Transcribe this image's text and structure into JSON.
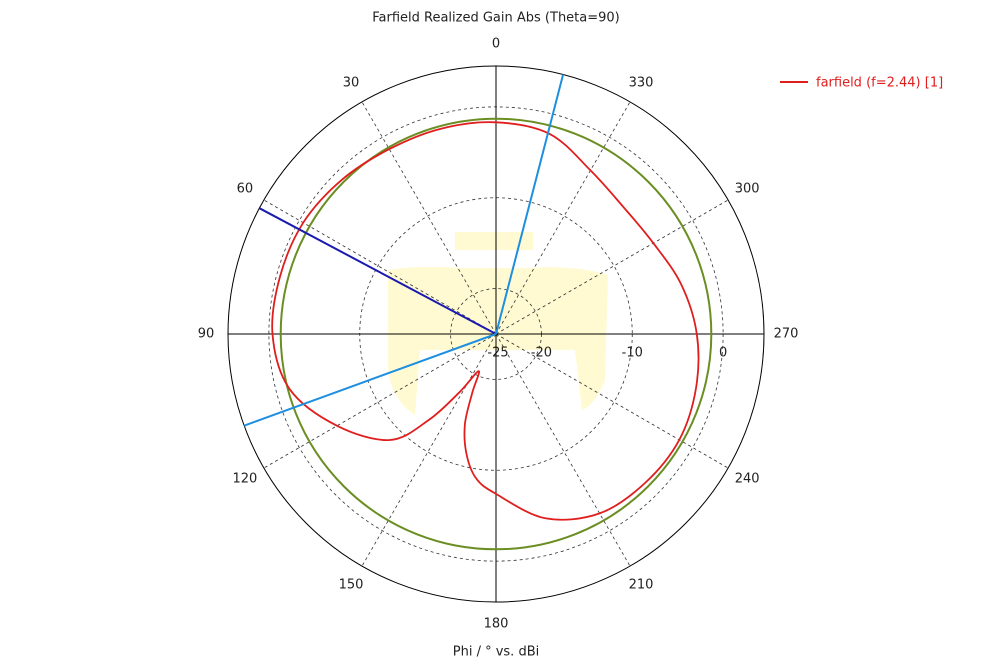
{
  "chart_data": {
    "type": "polar",
    "title": "Farfield Realized Gain Abs (Theta=90)",
    "axis_label": "Phi / ° vs. dBi",
    "angle_ticks": [
      0,
      30,
      60,
      90,
      120,
      150,
      180,
      210,
      240,
      270,
      300,
      330
    ],
    "rlim": [
      -25,
      4.5
    ],
    "rticks": [
      -25,
      -20,
      -10,
      0
    ],
    "legend_position": "upper right",
    "series": [
      {
        "name": "farfield (f=2.44) [1]",
        "color": "#e01e1e",
        "x": [
          0,
          15,
          30,
          45,
          60,
          75,
          90,
          105,
          120,
          135,
          142,
          148,
          155,
          158,
          161,
          166,
          172,
          180,
          195,
          210,
          225,
          240,
          255,
          270,
          285,
          300,
          315,
          330,
          345
        ],
        "values": [
          -1.7,
          -1.6,
          -1.5,
          -1.0,
          -0.5,
          -0.4,
          -0.4,
          -1.5,
          -4.8,
          -8.5,
          -13,
          -17.5,
          -20.5,
          -18,
          -14.5,
          -11.5,
          -9,
          -7.4,
          -4,
          -2.2,
          -1.8,
          -1.7,
          -2.2,
          -2.9,
          -3.9,
          -5.0,
          -5.2,
          -4.2,
          -2.2
        ]
      }
    ],
    "reference_circle": {
      "value": -1.3,
      "color": "#6b8e23"
    },
    "main_lobe_direction": {
      "value": 62,
      "color": "#1a1ab0"
    },
    "beamwidth_directions": {
      "values": [
        345.5,
        110
      ],
      "color": "#1e8fe0"
    }
  }
}
